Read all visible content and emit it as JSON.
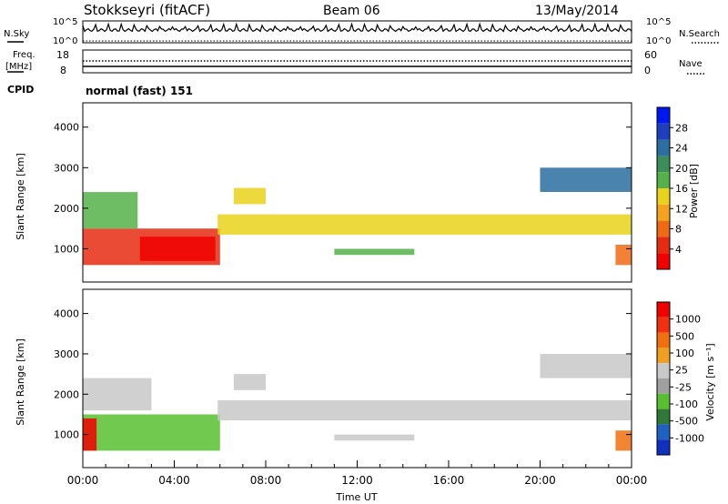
{
  "header": {
    "station": "Stokkseyri (fitACF)",
    "beam": "Beam 06",
    "date": "13/May/2014"
  },
  "panels": {
    "nsky_label": "N.Sky",
    "nsearch_label": "N.Search",
    "nsky_ticks": [
      "10^5",
      "10^0"
    ],
    "nsearch_ticks": [
      "10^5",
      "10^0"
    ],
    "freq_label_1": "Freq.",
    "freq_label_2": "[MHz]",
    "freq_ticks": [
      "18",
      "8"
    ],
    "nave_label": "Nave",
    "nave_ticks": [
      "60",
      "0"
    ],
    "cpid_label": "CPID",
    "cpid_value": "normal (fast) 151"
  },
  "colors": {
    "power_scale": [
      "#0018f0",
      "#1e3fbf",
      "#2a6fa0",
      "#3c8d5a",
      "#55b24a",
      "#e8d21c",
      "#f5a21e",
      "#f06a14",
      "#e62c10",
      "#f00000"
    ],
    "velocity_scale": [
      "#1030c0",
      "#2060c0",
      "#307838",
      "#58c030",
      "#a0a0a0",
      "#c8c8c8",
      "#f0a020",
      "#f07010",
      "#f03010",
      "#f00000"
    ]
  },
  "chart_data": [
    {
      "type": "heatmap",
      "name": "power",
      "ylabel": "Slant Range [km]",
      "colorbar_label": "Power [dB]",
      "colorbar_ticks": [
        "28",
        "24",
        "20",
        "16",
        "12",
        "8",
        "4"
      ],
      "ylim": [
        180,
        4600
      ],
      "yticks": [
        "4000",
        "3000",
        "2000",
        "1000"
      ],
      "xlim_hours": [
        0,
        24
      ],
      "bands": [
        {
          "t0": 0.0,
          "t1": 6.0,
          "r0": 600,
          "r1": 1500,
          "level": 8
        },
        {
          "t0": 2.5,
          "t1": 5.8,
          "r0": 700,
          "r1": 1300,
          "level": 9
        },
        {
          "t0": 0.0,
          "t1": 2.4,
          "r0": 1500,
          "r1": 2400,
          "level": 4
        },
        {
          "t0": 5.9,
          "t1": 24.0,
          "r0": 1350,
          "r1": 1850,
          "level": 5
        },
        {
          "t0": 6.6,
          "t1": 8.0,
          "r0": 2100,
          "r1": 2500,
          "level": 5
        },
        {
          "t0": 11.0,
          "t1": 14.5,
          "r0": 850,
          "r1": 1000,
          "level": 4
        },
        {
          "t0": 20.0,
          "t1": 24.0,
          "r0": 2400,
          "r1": 3000,
          "level": 2
        },
        {
          "t0": 23.3,
          "t1": 24.0,
          "r0": 600,
          "r1": 1100,
          "level": 7
        }
      ]
    },
    {
      "type": "heatmap",
      "name": "velocity",
      "ylabel": "Slant Range [km]",
      "colorbar_label": "Velocity [m s⁻¹]",
      "colorbar_ticks": [
        "1000",
        "500",
        "100",
        "25",
        "-25",
        "-100",
        "-500",
        "-1000"
      ],
      "ylim": [
        180,
        4600
      ],
      "yticks": [
        "4000",
        "3000",
        "2000",
        "1000"
      ],
      "xlim_hours": [
        0,
        24
      ],
      "xticks": [
        "00:00",
        "04:00",
        "08:00",
        "12:00",
        "16:00",
        "20:00",
        "00:00"
      ],
      "xlabel": "Time UT",
      "bands": [
        {
          "t0": 0.0,
          "t1": 6.0,
          "r0": 600,
          "r1": 1500,
          "level": 3
        },
        {
          "t0": 0.0,
          "t1": 0.6,
          "r0": 600,
          "r1": 1400,
          "level": 9
        },
        {
          "t0": 0.0,
          "t1": 3.0,
          "r0": 1600,
          "r1": 2400,
          "level": 5
        },
        {
          "t0": 5.9,
          "t1": 24.0,
          "r0": 1350,
          "r1": 1850,
          "level": 5
        },
        {
          "t0": 6.6,
          "t1": 8.0,
          "r0": 2100,
          "r1": 2500,
          "level": 5
        },
        {
          "t0": 11.0,
          "t1": 14.5,
          "r0": 850,
          "r1": 1000,
          "level": 5
        },
        {
          "t0": 20.0,
          "t1": 24.0,
          "r0": 2400,
          "r1": 3000,
          "level": 5
        },
        {
          "t0": 23.3,
          "t1": 24.0,
          "r0": 600,
          "r1": 1100,
          "level": 7
        }
      ]
    }
  ]
}
